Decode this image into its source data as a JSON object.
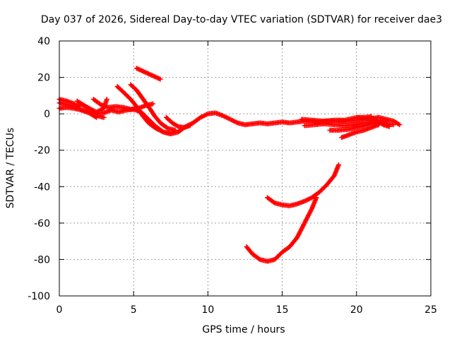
{
  "chart_data": {
    "type": "scatter",
    "title": "Day 037 of 2026, Sidereal Day-to-day VTEC variation (SDTVAR) for receiver dae3",
    "xlabel": "GPS time / hours",
    "ylabel": "SDTVAR / TECUs",
    "xlim": [
      0,
      25
    ],
    "ylim": [
      -100,
      40
    ],
    "xticks": [
      0,
      5,
      10,
      15,
      20,
      25
    ],
    "yticks": [
      -100,
      -80,
      -60,
      -40,
      -20,
      0,
      20,
      40
    ],
    "grid": true,
    "marker": "plus",
    "series_color": "#ff0000",
    "series": [
      {
        "name": "main-trace",
        "points": [
          [
            0.0,
            3.0
          ],
          [
            0.5,
            3.5
          ],
          [
            1.0,
            3.0
          ],
          [
            1.5,
            2.0
          ],
          [
            2.0,
            1.0
          ],
          [
            2.5,
            0.0
          ],
          [
            3.0,
            0.5
          ],
          [
            3.5,
            2.0
          ],
          [
            4.0,
            1.0
          ],
          [
            4.5,
            2.0
          ],
          [
            5.0,
            2.5
          ],
          [
            5.5,
            1.0
          ],
          [
            6.0,
            -3.0
          ],
          [
            6.5,
            -7.0
          ],
          [
            7.0,
            -10.0
          ],
          [
            7.5,
            -11.0
          ],
          [
            8.0,
            -10.0
          ],
          [
            8.5,
            -7.0
          ],
          [
            9.0,
            -5.0
          ],
          [
            9.5,
            -2.0
          ],
          [
            10.0,
            0.0
          ],
          [
            10.5,
            0.5
          ],
          [
            11.0,
            -1.0
          ],
          [
            11.5,
            -3.0
          ],
          [
            12.0,
            -5.0
          ],
          [
            12.5,
            -6.0
          ],
          [
            13.0,
            -5.5
          ],
          [
            13.5,
            -5.0
          ],
          [
            14.0,
            -5.5
          ],
          [
            14.5,
            -5.0
          ],
          [
            15.0,
            -4.5
          ],
          [
            15.5,
            -5.0
          ],
          [
            16.0,
            -4.5
          ],
          [
            16.5,
            -4.0
          ],
          [
            17.0,
            -4.0
          ],
          [
            17.5,
            -4.5
          ],
          [
            18.0,
            -4.0
          ],
          [
            18.5,
            -4.0
          ],
          [
            19.0,
            -4.0
          ],
          [
            19.5,
            -4.0
          ],
          [
            20.0,
            -3.5
          ],
          [
            20.5,
            -3.0
          ],
          [
            21.0,
            -2.5
          ],
          [
            21.5,
            -2.0
          ],
          [
            22.0,
            -3.0
          ],
          [
            22.5,
            -4.0
          ],
          [
            22.9,
            -6.0
          ]
        ]
      },
      {
        "name": "early-arc-a",
        "points": [
          [
            0.0,
            6.0
          ],
          [
            0.5,
            5.0
          ],
          [
            1.0,
            4.0
          ],
          [
            1.5,
            5.0
          ],
          [
            2.0,
            3.0
          ],
          [
            2.5,
            -1.0
          ],
          [
            3.0,
            -2.0
          ]
        ]
      },
      {
        "name": "early-arc-b",
        "points": [
          [
            0.0,
            8.0
          ],
          [
            0.5,
            7.0
          ],
          [
            1.0,
            5.5
          ],
          [
            1.5,
            2.0
          ],
          [
            2.0,
            0.5
          ],
          [
            2.5,
            -2.0
          ]
        ]
      },
      {
        "name": "early-arc-c",
        "points": [
          [
            1.2,
            7.0
          ],
          [
            1.6,
            5.0
          ],
          [
            2.0,
            3.0
          ],
          [
            2.5,
            1.0
          ],
          [
            3.0,
            3.0
          ],
          [
            3.2,
            8.0
          ]
        ]
      },
      {
        "name": "early-arc-d",
        "points": [
          [
            2.3,
            8.0
          ],
          [
            2.8,
            5.0
          ],
          [
            3.3,
            3.5
          ],
          [
            3.8,
            4.0
          ],
          [
            4.3,
            3.5
          ],
          [
            4.8,
            2.5
          ],
          [
            5.3,
            3.0
          ],
          [
            5.8,
            4.5
          ],
          [
            6.3,
            5.5
          ]
        ]
      },
      {
        "name": "arc-from-15",
        "points": [
          [
            3.9,
            15.0
          ],
          [
            4.3,
            12.0
          ],
          [
            4.8,
            8.0
          ],
          [
            5.2,
            4.0
          ],
          [
            5.6,
            -1.0
          ],
          [
            6.0,
            -5.0
          ],
          [
            6.5,
            -8.0
          ],
          [
            7.0,
            -10.0
          ],
          [
            7.5,
            -11.0
          ]
        ]
      },
      {
        "name": "arc-from-16",
        "points": [
          [
            4.8,
            16.0
          ],
          [
            5.2,
            13.0
          ],
          [
            5.6,
            8.5
          ],
          [
            6.0,
            4.0
          ],
          [
            6.4,
            -1.0
          ],
          [
            6.8,
            -5.0
          ],
          [
            7.3,
            -8.0
          ],
          [
            7.8,
            -9.0
          ]
        ]
      },
      {
        "name": "arc-high",
        "points": [
          [
            5.2,
            25.0
          ],
          [
            5.6,
            23.5
          ],
          [
            6.0,
            22.0
          ],
          [
            6.4,
            20.5
          ],
          [
            6.8,
            19.0
          ]
        ]
      },
      {
        "name": "arc-mid-hop",
        "points": [
          [
            7.2,
            -2.0
          ],
          [
            7.6,
            -5.0
          ],
          [
            8.0,
            -7.0
          ],
          [
            8.4,
            -7.5
          ],
          [
            8.8,
            -6.5
          ]
        ]
      },
      {
        "name": "late-arc-a",
        "points": [
          [
            16.3,
            -3.0
          ],
          [
            17.0,
            -3.5
          ],
          [
            17.8,
            -4.0
          ],
          [
            18.5,
            -3.5
          ],
          [
            19.2,
            -3.5
          ],
          [
            20.0,
            -2.0
          ],
          [
            20.5,
            -2.0
          ],
          [
            21.0,
            -1.5
          ]
        ]
      },
      {
        "name": "late-arc-b",
        "points": [
          [
            16.5,
            -6.5
          ],
          [
            17.2,
            -6.0
          ],
          [
            17.8,
            -5.5
          ],
          [
            18.5,
            -6.0
          ],
          [
            19.2,
            -6.5
          ],
          [
            19.8,
            -6.0
          ],
          [
            20.5,
            -5.0
          ],
          [
            21.2,
            -4.5
          ],
          [
            21.8,
            -5.0
          ],
          [
            22.5,
            -6.0
          ]
        ]
      },
      {
        "name": "late-arc-c",
        "points": [
          [
            18.2,
            -9.0
          ],
          [
            18.8,
            -9.0
          ],
          [
            19.5,
            -8.5
          ],
          [
            20.0,
            -7.5
          ],
          [
            20.5,
            -6.5
          ],
          [
            21.0,
            -5.5
          ],
          [
            21.5,
            -4.5
          ],
          [
            22.0,
            -4.0
          ]
        ]
      },
      {
        "name": "late-arc-d",
        "points": [
          [
            19.0,
            -13.0
          ],
          [
            19.5,
            -11.5
          ],
          [
            20.0,
            -10.0
          ],
          [
            20.5,
            -9.0
          ],
          [
            21.0,
            -7.5
          ],
          [
            21.5,
            -6.0
          ]
        ]
      },
      {
        "name": "late-arc-e",
        "points": [
          [
            20.0,
            -2.0
          ],
          [
            20.5,
            -2.5
          ],
          [
            21.0,
            -3.0
          ],
          [
            21.4,
            -4.0
          ],
          [
            21.8,
            -6.0
          ],
          [
            22.2,
            -7.0
          ]
        ]
      },
      {
        "name": "low-arc-upper",
        "points": [
          [
            14.0,
            -46.0
          ],
          [
            14.5,
            -49.0
          ],
          [
            15.0,
            -50.0
          ],
          [
            15.5,
            -50.5
          ],
          [
            16.0,
            -49.5
          ],
          [
            16.5,
            -48.0
          ],
          [
            17.0,
            -46.0
          ],
          [
            17.5,
            -43.0
          ],
          [
            18.0,
            -39.0
          ],
          [
            18.5,
            -34.0
          ],
          [
            18.8,
            -28.0
          ]
        ]
      },
      {
        "name": "low-arc-lower",
        "points": [
          [
            12.6,
            -73.0
          ],
          [
            13.0,
            -77.0
          ],
          [
            13.5,
            -80.0
          ],
          [
            14.0,
            -81.0
          ],
          [
            14.5,
            -80.0
          ],
          [
            15.0,
            -76.0
          ],
          [
            15.5,
            -73.0
          ],
          [
            16.0,
            -68.0
          ],
          [
            16.5,
            -60.0
          ],
          [
            17.0,
            -52.0
          ],
          [
            17.3,
            -46.0
          ]
        ]
      }
    ]
  }
}
